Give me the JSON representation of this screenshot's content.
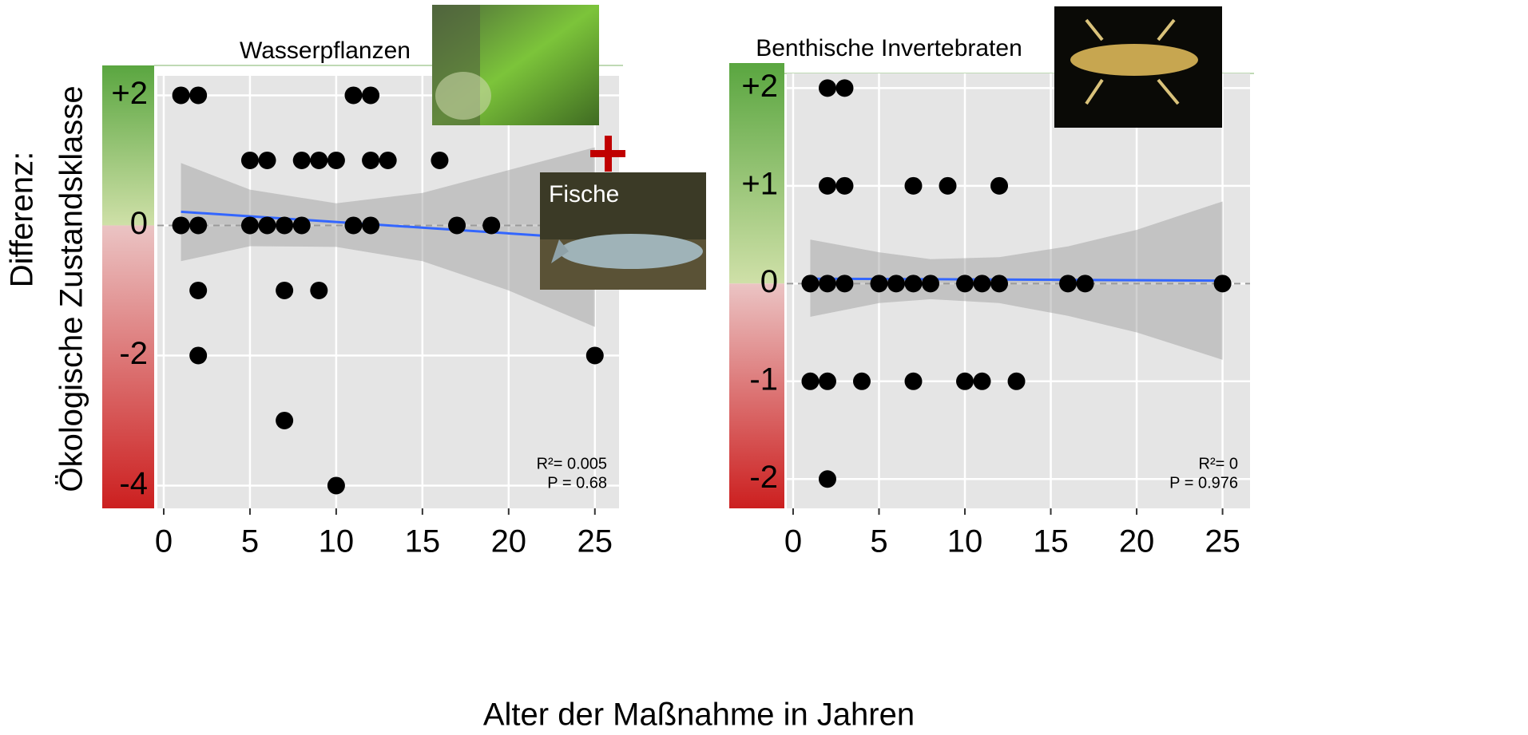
{
  "figure": {
    "xlabel": "Alter der Maßnahme in Jahren",
    "ylabel": [
      "Differenz:",
      "Ökologische Zustandsklasse"
    ],
    "inset_label": "Fische"
  },
  "chart_data": [
    {
      "type": "scatter",
      "title": "Wasserpflanzen",
      "series": [
        {
          "color": "#000000",
          "x": [
            1,
            2,
            5,
            6,
            8,
            9,
            10,
            11,
            12,
            12,
            13,
            16,
            1,
            2,
            5,
            6,
            7,
            8,
            11,
            12,
            17,
            19,
            2,
            7,
            9,
            2,
            25,
            7,
            10
          ],
          "values": [
            2,
            2,
            1,
            1,
            1,
            1,
            1,
            2,
            2,
            1,
            1,
            1,
            0,
            0,
            0,
            0,
            0,
            0,
            0,
            0,
            0,
            0,
            -1,
            -1,
            -1,
            -2,
            -2,
            -3,
            -4
          ]
        }
      ],
      "fit": {
        "color": "#3366ff",
        "x": [
          1,
          25
        ],
        "values": [
          0.21,
          -0.21
        ]
      },
      "band": {
        "x": [
          1,
          5,
          10,
          15,
          20,
          25
        ],
        "upper": [
          0.96,
          0.55,
          0.34,
          0.5,
          0.85,
          1.2
        ],
        "lower": [
          -0.55,
          -0.32,
          -0.33,
          -0.55,
          -1.0,
          -1.56
        ]
      },
      "annotations": [
        "R²= 0.005",
        "P = 0.68"
      ],
      "hline": 0,
      "xlim": [
        -0.37,
        26.4
      ],
      "ylim": [
        -4.35,
        2.3
      ],
      "xticks": [
        0,
        5,
        10,
        15,
        20,
        25
      ],
      "yticks": [
        {
          "value": 2,
          "label": "+2"
        },
        0,
        -2,
        -4
      ],
      "grid": true
    },
    {
      "type": "scatter",
      "title": "Benthische Invertebraten",
      "series": [
        {
          "color": "#000000",
          "x": [
            2,
            3,
            2,
            3,
            7,
            9,
            12,
            1,
            2,
            3,
            5,
            6,
            7,
            8,
            10,
            11,
            12,
            16,
            17,
            25,
            1,
            2,
            4,
            7,
            10,
            11,
            13,
            2
          ],
          "values": [
            2,
            2,
            1,
            1,
            1,
            1,
            1,
            0,
            0,
            0,
            0,
            0,
            0,
            0,
            0,
            0,
            0,
            0,
            0,
            0,
            -1,
            -1,
            -1,
            -1,
            -1,
            -1,
            -1,
            -2
          ]
        }
      ],
      "fit": {
        "color": "#3366ff",
        "x": [
          1,
          25
        ],
        "values": [
          0.05,
          0.03
        ]
      },
      "band": {
        "x": [
          1,
          5,
          8,
          12,
          16,
          20,
          25
        ],
        "upper": [
          0.45,
          0.32,
          0.25,
          0.27,
          0.38,
          0.55,
          0.84
        ],
        "lower": [
          -0.34,
          -0.2,
          -0.16,
          -0.2,
          -0.33,
          -0.5,
          -0.78
        ]
      },
      "annotations": [
        "R²= 0",
        "P = 0.976"
      ],
      "hline": 0,
      "xlim": [
        -0.37,
        26.6
      ],
      "ylim": [
        -2.3,
        2.15
      ],
      "xticks": [
        0,
        5,
        10,
        15,
        20,
        25
      ],
      "yticks": [
        {
          "value": 2,
          "label": "+2"
        },
        {
          "value": 1,
          "label": "+1"
        },
        0,
        -1,
        -2
      ],
      "grid": true
    }
  ]
}
